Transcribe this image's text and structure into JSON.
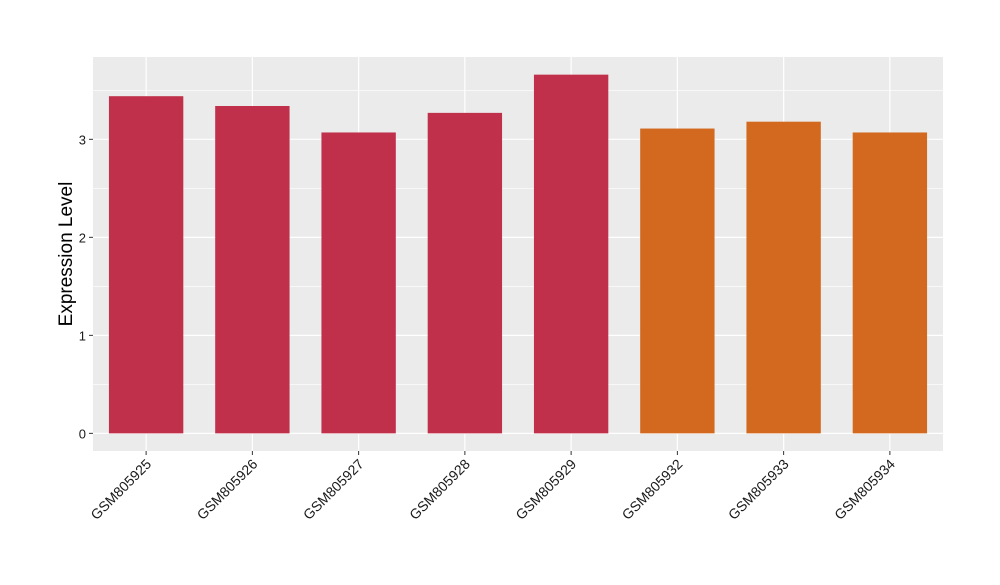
{
  "chart_data": {
    "type": "bar",
    "title": "",
    "xlabel": "",
    "ylabel": "Expression Level",
    "categories": [
      "GSM805925",
      "GSM805926",
      "GSM805927",
      "GSM805928",
      "GSM805929",
      "GSM805932",
      "GSM805933",
      "GSM805934"
    ],
    "values": [
      3.44,
      3.34,
      3.07,
      3.27,
      3.66,
      3.11,
      3.18,
      3.07
    ],
    "groups": [
      0,
      0,
      0,
      0,
      0,
      1,
      1,
      1
    ],
    "group_colors": [
      "#c0304a",
      "#d2691e"
    ],
    "ylim": [
      -0.18,
      3.84
    ],
    "yticks": [
      0,
      1,
      2,
      3
    ],
    "grid": true,
    "panel_background": "#ebebeb",
    "grid_color": "#ffffff"
  }
}
